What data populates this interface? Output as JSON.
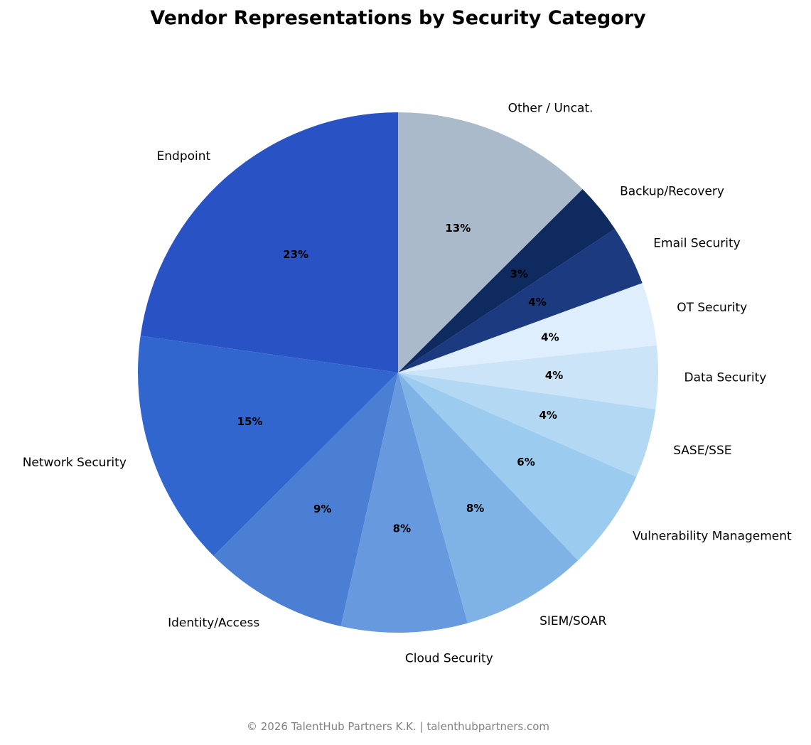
{
  "title": "Vendor Representations by Security Category",
  "footer": "© 2026 TalentHub Partners K.K. | talenthubpartners.com",
  "chart_data": {
    "type": "pie",
    "title": "Vendor Representations by Security Category",
    "start_angle_deg": 90,
    "direction": "counterclockwise",
    "categories": [
      "Endpoint",
      "Network Security",
      "Identity/Access",
      "Cloud Security",
      "SIEM/SOAR",
      "Vulnerability Management",
      "SASE/SSE",
      "Data Security",
      "OT Security",
      "Email Security",
      "Backup/Recovery",
      "Other / Uncat."
    ],
    "values": [
      23.2,
      15.0,
      9.2,
      8.0,
      8.0,
      6.4,
      4.4,
      4.0,
      4.0,
      3.8,
      3.2,
      12.8
    ],
    "labels_pct": [
      "23%",
      "15%",
      "9%",
      "8%",
      "8%",
      "6%",
      "4%",
      "4%",
      "4%",
      "4%",
      "3%",
      "13%"
    ],
    "colors": [
      "#2953c5",
      "#3166cf",
      "#4a7fd3",
      "#6699de",
      "#7fb2e5",
      "#9ccbf0",
      "#b3d8f3",
      "#cbe4f7",
      "#dfeefd",
      "#1c3a80",
      "#0f2a5e",
      "#aabacb"
    ],
    "legend": "none (labels on wedges)"
  }
}
